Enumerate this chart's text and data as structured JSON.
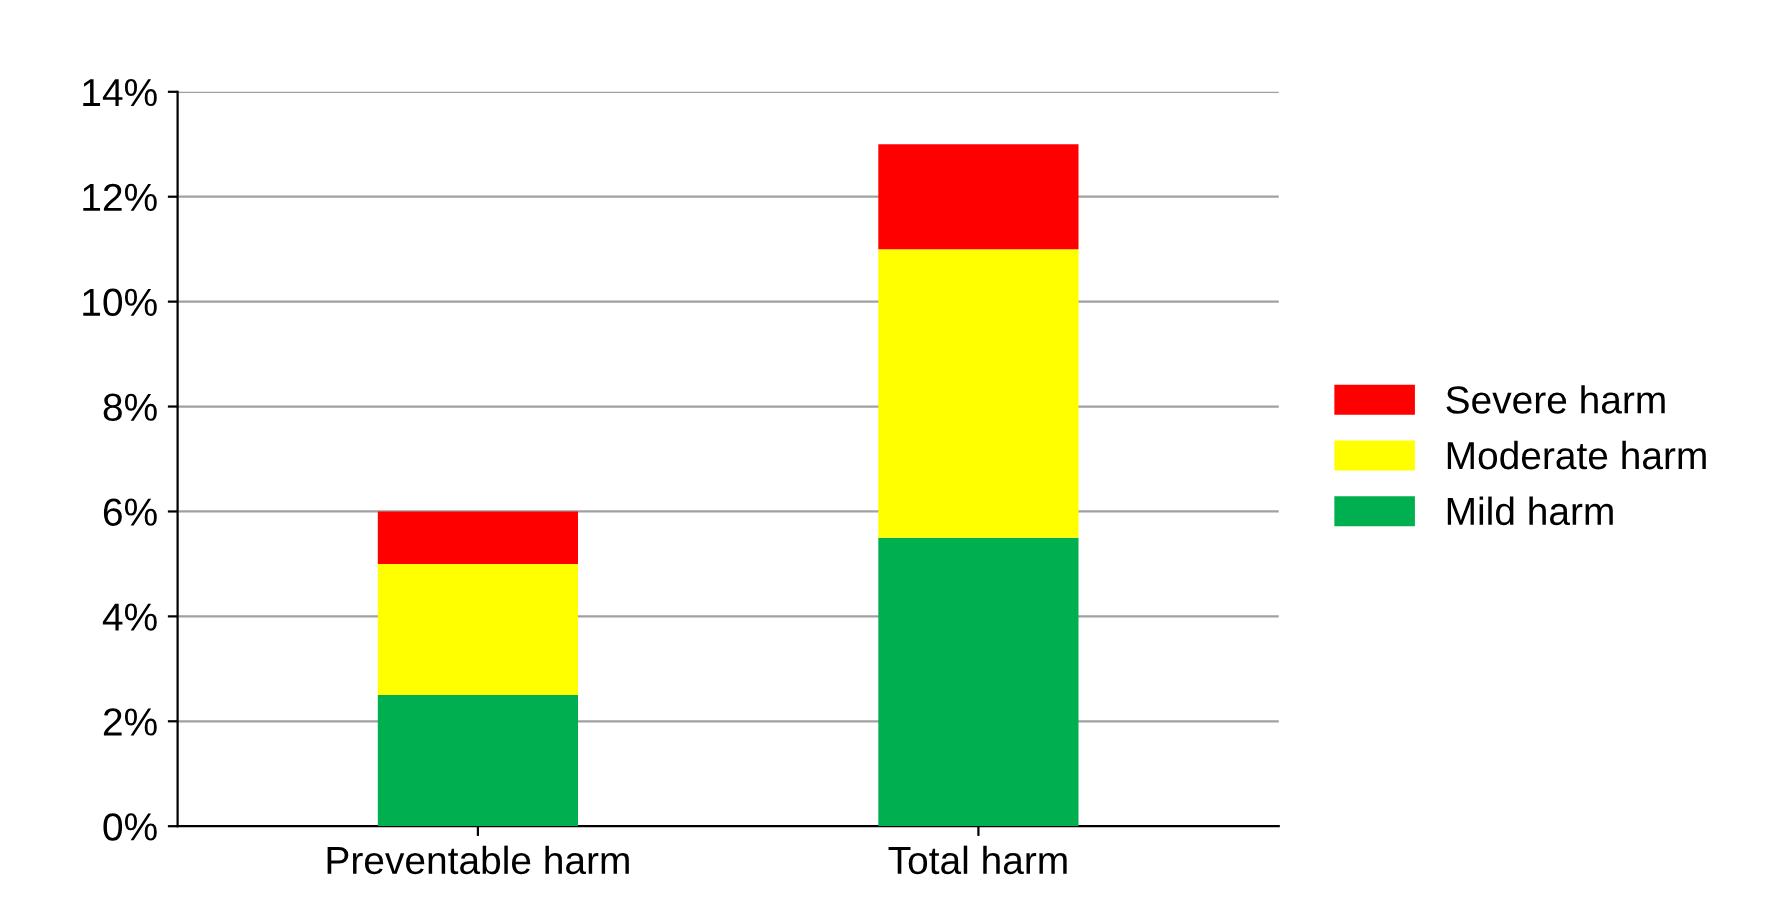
{
  "chart_data": {
    "type": "bar",
    "stacked": true,
    "categories": [
      "Preventable harm",
      "Total harm"
    ],
    "series": [
      {
        "name": "Mild harm",
        "color": "#00b050",
        "values": [
          2.5,
          5.5
        ]
      },
      {
        "name": "Moderate harm",
        "color": "#ffff00",
        "values": [
          2.5,
          5.5
        ]
      },
      {
        "name": "Severe harm",
        "color": "#ff0000",
        "values": [
          1.0,
          2.0
        ]
      }
    ],
    "ylim": [
      0,
      14
    ],
    "yticks": [
      {
        "value": 0,
        "label": "0%"
      },
      {
        "value": 2,
        "label": "2%"
      },
      {
        "value": 4,
        "label": "4%"
      },
      {
        "value": 6,
        "label": "6%"
      },
      {
        "value": 8,
        "label": "8%"
      },
      {
        "value": 10,
        "label": "10%"
      },
      {
        "value": 12,
        "label": "12%"
      },
      {
        "value": 14,
        "label": "14%"
      }
    ],
    "grid": "y",
    "legend": "right"
  }
}
